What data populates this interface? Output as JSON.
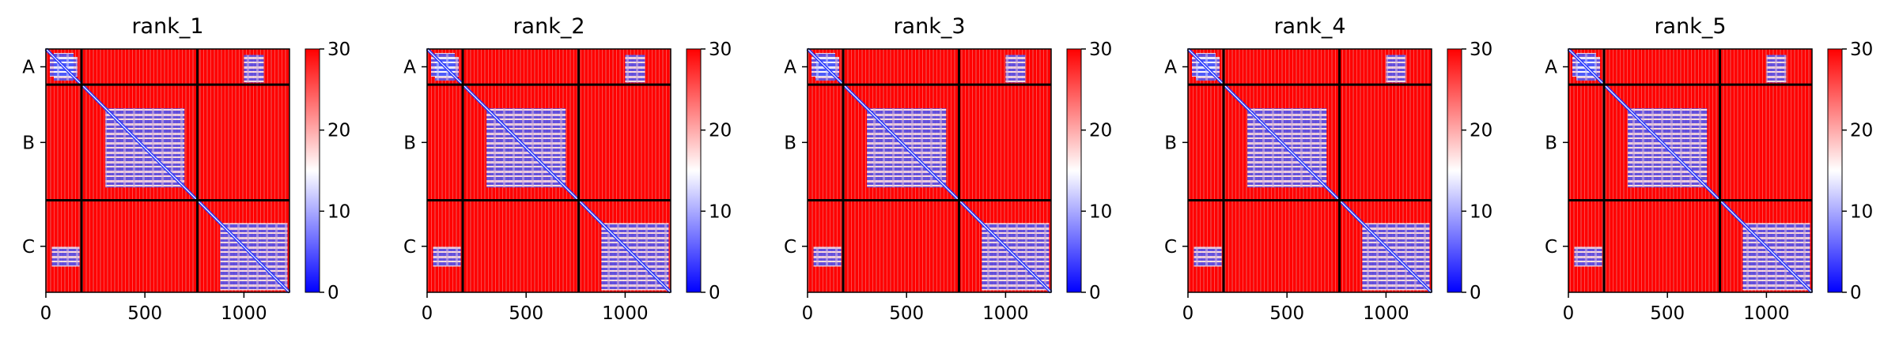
{
  "figure": {
    "background": "#ffffff"
  },
  "chart_data": [
    {
      "type": "heatmap",
      "title": "rank_1",
      "x_ticks": [
        0,
        500,
        1000
      ],
      "y_tick_labels": [
        "A",
        "B",
        "C"
      ],
      "xlim": [
        0,
        1230
      ],
      "chain_boundaries": [
        180,
        765,
        1230
      ],
      "colorbar": {
        "ticks": [
          0,
          10,
          20,
          30
        ],
        "range": [
          0,
          30
        ],
        "colormap": "bwr"
      },
      "low_error_blocks": [
        [
          40,
          140,
          20,
          160
        ],
        [
          300,
          700,
          300,
          700
        ],
        [
          880,
          1220,
          880,
          1220
        ],
        [
          30,
          170,
          1000,
          1100
        ]
      ]
    },
    {
      "type": "heatmap",
      "title": "rank_2",
      "x_ticks": [
        0,
        500,
        1000
      ],
      "y_tick_labels": [
        "A",
        "B",
        "C"
      ],
      "xlim": [
        0,
        1230
      ],
      "chain_boundaries": [
        180,
        765,
        1230
      ],
      "colorbar": {
        "ticks": [
          0,
          10,
          20,
          30
        ],
        "range": [
          0,
          30
        ],
        "colormap": "bwr"
      },
      "low_error_blocks": [
        [
          40,
          140,
          20,
          160
        ],
        [
          300,
          700,
          300,
          700
        ],
        [
          880,
          1220,
          880,
          1220
        ],
        [
          30,
          170,
          1000,
          1100
        ]
      ]
    },
    {
      "type": "heatmap",
      "title": "rank_3",
      "x_ticks": [
        0,
        500,
        1000
      ],
      "y_tick_labels": [
        "A",
        "B",
        "C"
      ],
      "xlim": [
        0,
        1230
      ],
      "chain_boundaries": [
        180,
        765,
        1230
      ],
      "colorbar": {
        "ticks": [
          0,
          10,
          20,
          30
        ],
        "range": [
          0,
          30
        ],
        "colormap": "bwr"
      },
      "low_error_blocks": [
        [
          40,
          140,
          20,
          160
        ],
        [
          300,
          700,
          300,
          700
        ],
        [
          880,
          1220,
          880,
          1220
        ],
        [
          30,
          170,
          1000,
          1100
        ]
      ]
    },
    {
      "type": "heatmap",
      "title": "rank_4",
      "x_ticks": [
        0,
        500,
        1000
      ],
      "y_tick_labels": [
        "A",
        "B",
        "C"
      ],
      "xlim": [
        0,
        1230
      ],
      "chain_boundaries": [
        180,
        765,
        1230
      ],
      "colorbar": {
        "ticks": [
          0,
          10,
          20,
          30
        ],
        "range": [
          0,
          30
        ],
        "colormap": "bwr"
      },
      "low_error_blocks": [
        [
          40,
          140,
          20,
          160
        ],
        [
          300,
          700,
          300,
          700
        ],
        [
          880,
          1220,
          880,
          1220
        ],
        [
          30,
          170,
          1000,
          1100
        ]
      ]
    },
    {
      "type": "heatmap",
      "title": "rank_5",
      "x_ticks": [
        0,
        500,
        1000
      ],
      "y_tick_labels": [
        "A",
        "B",
        "C"
      ],
      "xlim": [
        0,
        1230
      ],
      "chain_boundaries": [
        180,
        765,
        1230
      ],
      "colorbar": {
        "ticks": [
          0,
          10,
          20,
          30
        ],
        "range": [
          0,
          30
        ],
        "colormap": "bwr"
      },
      "low_error_blocks": [
        [
          40,
          140,
          20,
          160
        ],
        [
          300,
          700,
          300,
          700
        ],
        [
          880,
          1220,
          880,
          1220
        ],
        [
          30,
          170,
          1000,
          1100
        ]
      ]
    }
  ]
}
